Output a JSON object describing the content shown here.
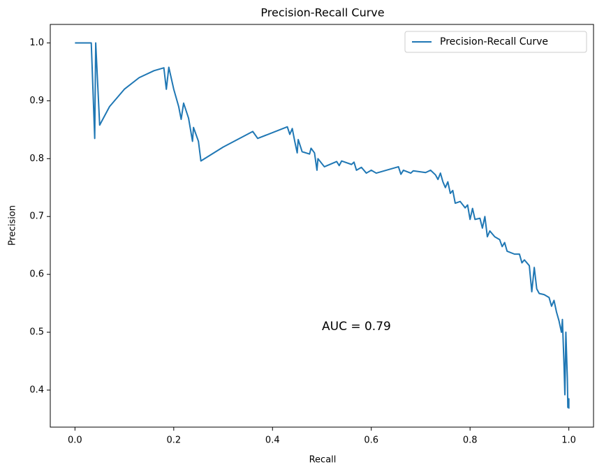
{
  "chart_data": {
    "type": "line",
    "title": "Precision-Recall Curve",
    "xlabel": "Recall",
    "ylabel": "Precision",
    "annotation": {
      "text": "AUC = 0.79",
      "x": 0.5,
      "y": 0.5
    },
    "legend": "upper right",
    "x": [
      0,
      0.033,
      0.04,
      0.042,
      0.05,
      0.07,
      0.1,
      0.13,
      0.16,
      0.18,
      0.185,
      0.19,
      0.2,
      0.21,
      0.215,
      0.22,
      0.23,
      0.238,
      0.24,
      0.25,
      0.255,
      0.3,
      0.36,
      0.37,
      0.43,
      0.435,
      0.44,
      0.445,
      0.45,
      0.452,
      0.46,
      0.475,
      0.478,
      0.485,
      0.49,
      0.492,
      0.505,
      0.53,
      0.535,
      0.54,
      0.56,
      0.565,
      0.57,
      0.58,
      0.59,
      0.6,
      0.61,
      0.655,
      0.66,
      0.665,
      0.68,
      0.685,
      0.71,
      0.72,
      0.73,
      0.735,
      0.74,
      0.745,
      0.75,
      0.755,
      0.76,
      0.765,
      0.77,
      0.78,
      0.79,
      0.795,
      0.8,
      0.805,
      0.81,
      0.82,
      0.825,
      0.83,
      0.835,
      0.84,
      0.85,
      0.86,
      0.865,
      0.87,
      0.875,
      0.89,
      0.9,
      0.905,
      0.91,
      0.92,
      0.925,
      0.93,
      0.935,
      0.94,
      0.95,
      0.96,
      0.965,
      0.97,
      0.975,
      0.98,
      0.985,
      0.987,
      0.99,
      0.992,
      0.994,
      0.997,
      0.998,
      1.0,
      1.0
    ],
    "series": [
      {
        "name": "Precision-Recall Curve",
        "color": "#1f77b4",
        "values": [
          1.0,
          1.0,
          0.835,
          1.0,
          0.858,
          0.89,
          0.92,
          0.94,
          0.952,
          0.957,
          0.92,
          0.958,
          0.92,
          0.89,
          0.868,
          0.896,
          0.87,
          0.83,
          0.854,
          0.83,
          0.796,
          0.82,
          0.847,
          0.835,
          0.855,
          0.842,
          0.852,
          0.83,
          0.81,
          0.833,
          0.812,
          0.808,
          0.818,
          0.81,
          0.78,
          0.8,
          0.786,
          0.795,
          0.788,
          0.796,
          0.79,
          0.794,
          0.78,
          0.785,
          0.775,
          0.78,
          0.775,
          0.786,
          0.773,
          0.78,
          0.775,
          0.779,
          0.776,
          0.78,
          0.772,
          0.764,
          0.775,
          0.76,
          0.75,
          0.76,
          0.74,
          0.745,
          0.723,
          0.726,
          0.715,
          0.72,
          0.695,
          0.714,
          0.695,
          0.697,
          0.68,
          0.7,
          0.665,
          0.675,
          0.665,
          0.66,
          0.648,
          0.655,
          0.64,
          0.635,
          0.635,
          0.62,
          0.625,
          0.615,
          0.57,
          0.612,
          0.575,
          0.567,
          0.565,
          0.56,
          0.545,
          0.555,
          0.535,
          0.52,
          0.5,
          0.522,
          0.45,
          0.392,
          0.5,
          0.42,
          0.37,
          0.385,
          0.368
        ]
      }
    ],
    "xlim": [
      -0.05,
      1.05
    ],
    "ylim": [
      0.336,
      1.032
    ],
    "xticks": [
      {
        "value": 0,
        "label": "0.0"
      },
      0.2,
      0.4,
      0.6,
      0.8,
      {
        "value": 1,
        "label": "1.0"
      }
    ],
    "yticks": [
      0.4,
      0.5,
      0.6,
      0.7,
      0.8,
      0.9,
      {
        "value": 1,
        "label": "1.0"
      }
    ]
  }
}
